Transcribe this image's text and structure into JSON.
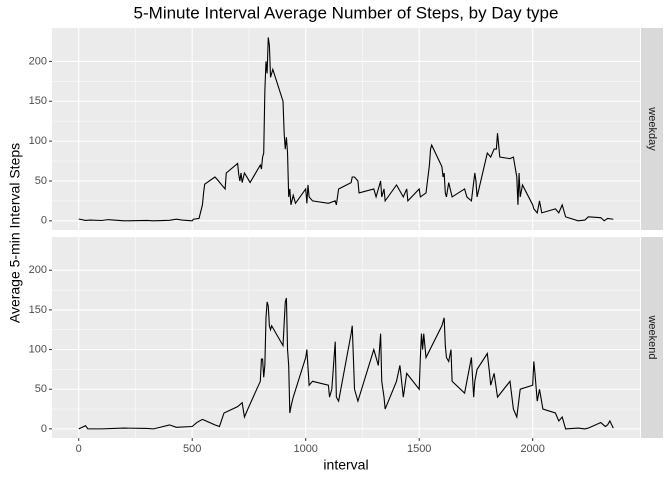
{
  "chart_data": {
    "type": "line",
    "title": "5-Minute Interval Average Number of Steps, by Day type",
    "xlabel": "interval",
    "ylabel": "Average 5-min Interval Steps",
    "xlim": [
      -117.75,
      2472.75
    ],
    "xticks": [
      0,
      500,
      1000,
      1500,
      2000
    ],
    "ylim": [
      -11.5,
      241.9
    ],
    "yticks": [
      0,
      50,
      100,
      150,
      200
    ],
    "grid": true,
    "series": [
      {
        "name": "weekday",
        "color": "#000000",
        "x": [
          0,
          30,
          50,
          100,
          130,
          200,
          300,
          330,
          400,
          430,
          455,
          500,
          505,
          530,
          545,
          550,
          555,
          600,
          610,
          630,
          645,
          650,
          700,
          705,
          710,
          715,
          720,
          730,
          745,
          755,
          800,
          805,
          810,
          815,
          820,
          825,
          830,
          835,
          840,
          845,
          850,
          855,
          900,
          905,
          910,
          915,
          920,
          925,
          930,
          935,
          945,
          955,
          1000,
          1005,
          1010,
          1015,
          1030,
          1100,
          1130,
          1135,
          1145,
          1200,
          1205,
          1215,
          1230,
          1235,
          1300,
          1310,
          1330,
          1335,
          1345,
          1350,
          1400,
          1430,
          1445,
          1450,
          1500,
          1505,
          1530,
          1545,
          1550,
          1555,
          1600,
          1605,
          1610,
          1615,
          1620,
          1630,
          1645,
          1700,
          1710,
          1730,
          1745,
          1750,
          1755,
          1800,
          1815,
          1830,
          1840,
          1845,
          1850,
          1855,
          1900,
          1915,
          1930,
          1935,
          1940,
          1945,
          1955,
          2000,
          2005,
          2020,
          2030,
          2040,
          2100,
          2115,
          2130,
          2145,
          2200,
          2230,
          2245,
          2300,
          2315,
          2330,
          2355
        ],
        "values": [
          2.3,
          0.5,
          1,
          0.4,
          1.5,
          0,
          0.5,
          0,
          0.7,
          2,
          1,
          0,
          2,
          3,
          20,
          35,
          46,
          55,
          52,
          45,
          40,
          60,
          72,
          58,
          50,
          60,
          48,
          60,
          53,
          48,
          70,
          65,
          80,
          85,
          163,
          200,
          185,
          230,
          220,
          180,
          185,
          190,
          150,
          110,
          90,
          105,
          85,
          30,
          40,
          20,
          32,
          22,
          40,
          22,
          45,
          30,
          25,
          22,
          25,
          20,
          40,
          48,
          55,
          55,
          50,
          35,
          40,
          30,
          50,
          30,
          40,
          25,
          45,
          30,
          40,
          25,
          40,
          30,
          35,
          70,
          90,
          95,
          68,
          55,
          60,
          35,
          30,
          48,
          30,
          40,
          30,
          25,
          60,
          50,
          30,
          85,
          80,
          90,
          90,
          110,
          95,
          80,
          78,
          80,
          55,
          20,
          60,
          30,
          45,
          20,
          15,
          10,
          25,
          10,
          15,
          10,
          20,
          5,
          0,
          1,
          5,
          4,
          0,
          3,
          2
        ]
      },
      {
        "name": "weekend",
        "color": "#000000",
        "x": [
          0,
          30,
          40,
          100,
          200,
          300,
          330,
          400,
          430,
          500,
          520,
          545,
          600,
          620,
          640,
          700,
          720,
          730,
          745,
          800,
          805,
          810,
          815,
          820,
          825,
          830,
          835,
          840,
          845,
          850,
          900,
          910,
          915,
          920,
          925,
          930,
          935,
          945,
          1000,
          1005,
          1015,
          1030,
          1100,
          1105,
          1115,
          1130,
          1135,
          1145,
          1200,
          1205,
          1210,
          1215,
          1230,
          1300,
          1320,
          1330,
          1335,
          1345,
          1350,
          1400,
          1415,
          1430,
          1445,
          1500,
          1505,
          1510,
          1515,
          1520,
          1530,
          1600,
          1610,
          1615,
          1620,
          1630,
          1640,
          1645,
          1700,
          1710,
          1730,
          1740,
          1745,
          1755,
          1800,
          1810,
          1815,
          1830,
          1845,
          1900,
          1915,
          1930,
          1945,
          2000,
          2005,
          2010,
          2020,
          2030,
          2045,
          2100,
          2115,
          2130,
          2145,
          2200,
          2230,
          2245,
          2300,
          2320,
          2330,
          2340,
          2355
        ],
        "values": [
          0,
          4,
          0,
          0,
          1,
          0.5,
          0,
          5,
          2,
          3,
          8,
          12,
          5,
          3,
          20,
          28,
          33,
          15,
          25,
          60,
          88,
          88,
          65,
          80,
          140,
          160,
          155,
          130,
          125,
          130,
          105,
          160,
          165,
          100,
          80,
          20,
          28,
          40,
          90,
          100,
          55,
          60,
          55,
          40,
          50,
          110,
          40,
          35,
          120,
          130,
          90,
          50,
          35,
          100,
          80,
          120,
          60,
          40,
          25,
          60,
          80,
          40,
          70,
          50,
          90,
          120,
          100,
          120,
          90,
          130,
          140,
          105,
          90,
          85,
          100,
          60,
          45,
          60,
          90,
          40,
          60,
          75,
          95,
          70,
          55,
          70,
          40,
          60,
          25,
          15,
          50,
          55,
          85,
          70,
          35,
          50,
          25,
          20,
          10,
          15,
          0,
          1,
          0,
          1,
          8,
          3,
          5,
          10,
          1
        ]
      }
    ]
  }
}
